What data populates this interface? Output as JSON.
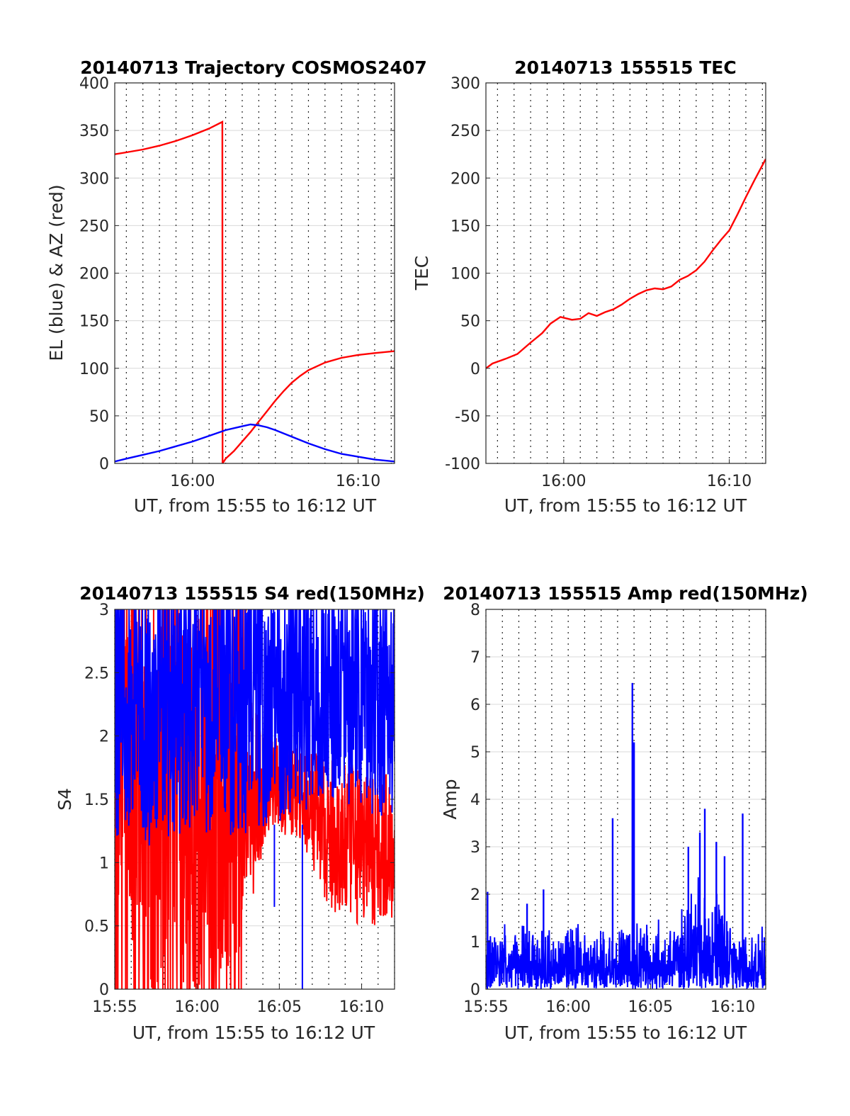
{
  "chart_data": [
    {
      "id": "traj",
      "type": "line",
      "title": "20140713 Trajectory COSMOS2407",
      "xlabel": "UT, from 15:55 to 16:12 UT",
      "ylabel": "EL (blue) & AZ (red)",
      "x_range_minutes": [
        955.3,
        972.2
      ],
      "x_ticks": [
        {
          "t": 960,
          "label": "16:00"
        },
        {
          "t": 970,
          "label": "16:10"
        }
      ],
      "ylim": [
        0,
        400
      ],
      "y_ticks": [
        0,
        50,
        100,
        150,
        200,
        250,
        300,
        350,
        400
      ],
      "grid": "on",
      "series": [
        {
          "color": "#ff0000",
          "x": [
            955.3,
            956,
            957,
            958,
            959,
            960,
            961,
            961.8,
            961.81,
            962,
            962.5,
            963,
            963.5,
            964,
            964.5,
            965,
            965.5,
            966,
            966.5,
            967,
            968,
            969,
            970,
            971,
            972.2
          ],
          "y": [
            325,
            327,
            330,
            334,
            339,
            345,
            352,
            359,
            0,
            5,
            13,
            23,
            33,
            44,
            55,
            66,
            76,
            85,
            92,
            98,
            106,
            111,
            114,
            116,
            118
          ]
        },
        {
          "color": "#0000ff",
          "x": [
            955.3,
            956,
            957,
            958,
            959,
            960,
            961,
            962,
            963,
            963.5,
            964,
            964.5,
            965,
            966,
            967,
            968,
            969,
            970,
            971,
            972.2
          ],
          "y": [
            2,
            5,
            9,
            13,
            18,
            23,
            29,
            35,
            39,
            41,
            40,
            38,
            35,
            28,
            21,
            15,
            10,
            7,
            4,
            2
          ]
        }
      ]
    },
    {
      "id": "tec",
      "type": "line",
      "title": "20140713 155515 TEC",
      "xlabel": "UT, from 15:55 to 16:12 UT",
      "ylabel": "TEC",
      "x_range_minutes": [
        955.3,
        972.2
      ],
      "x_ticks": [
        {
          "t": 960,
          "label": "16:00"
        },
        {
          "t": 970,
          "label": "16:10"
        }
      ],
      "ylim": [
        -100,
        300
      ],
      "y_ticks": [
        -100,
        -50,
        0,
        50,
        100,
        150,
        200,
        250,
        300
      ],
      "grid": "on",
      "series": [
        {
          "color": "#ff0000",
          "x": [
            955.3,
            955.7,
            956.5,
            957.2,
            958,
            958.7,
            959.2,
            959.8,
            960.5,
            961,
            961.5,
            962,
            962.5,
            963,
            963.5,
            964,
            964.5,
            965,
            965.5,
            966,
            966.5,
            967,
            967.5,
            968,
            968.5,
            969,
            969.5,
            970,
            970.5,
            971,
            971.5,
            972.2
          ],
          "y": [
            0,
            5,
            10,
            15,
            27,
            37,
            47,
            54,
            51,
            52,
            58,
            55,
            59,
            62,
            67,
            73,
            78,
            82,
            84,
            83,
            86,
            93,
            97,
            103,
            112,
            124,
            135,
            145,
            162,
            180,
            197,
            220
          ]
        }
      ]
    },
    {
      "id": "s4",
      "type": "line",
      "title": "20140713 155515 S4 red(150MHz)",
      "xlabel": "UT, from 15:55 to 16:12 UT",
      "ylabel": "S4",
      "x_range_minutes": [
        955,
        972
      ],
      "x_ticks": [
        {
          "t": 955,
          "label": "15:55"
        },
        {
          "t": 960,
          "label": "16:00"
        },
        {
          "t": 965,
          "label": "16:05"
        },
        {
          "t": 970,
          "label": "16:10"
        }
      ],
      "ylim": [
        0,
        3
      ],
      "y_ticks": [
        0,
        0.5,
        1,
        1.5,
        2,
        2.5,
        3
      ],
      "grid": "on",
      "noise_profile": [
        {
          "x": 955,
          "red_lo": 0.8,
          "red_hi": 3.0,
          "blue_lo": 1.2,
          "blue_hi": 2.8
        },
        {
          "x": 957,
          "red_lo": 0.0,
          "red_hi": 3.0,
          "blue_lo": 1.1,
          "blue_hi": 3.0
        },
        {
          "x": 960,
          "red_lo": 0.0,
          "red_hi": 3.0,
          "blue_lo": 1.2,
          "blue_hi": 3.0
        },
        {
          "x": 962.5,
          "red_lo": 0.2,
          "red_hi": 2.5,
          "blue_lo": 1.2,
          "blue_hi": 3.0
        },
        {
          "x": 964.5,
          "red_lo": 1.3,
          "red_hi": 2.0,
          "blue_lo": 1.3,
          "blue_hi": 3.0
        },
        {
          "x": 966.5,
          "red_lo": 1.1,
          "red_hi": 1.9,
          "blue_lo": 1.4,
          "blue_hi": 3.0
        },
        {
          "x": 968.5,
          "red_lo": 0.5,
          "red_hi": 1.8,
          "blue_lo": 1.5,
          "blue_hi": 3.0
        },
        {
          "x": 972,
          "red_lo": 0.5,
          "red_hi": 1.7,
          "blue_lo": 1.3,
          "blue_hi": 3.0
        }
      ],
      "series": [
        {
          "color": "#ff0000"
        },
        {
          "color": "#0000ff"
        }
      ]
    },
    {
      "id": "amp",
      "type": "line",
      "title": "20140713 155515 Amp red(150MHz)",
      "xlabel": "UT, from 15:55 to 16:12 UT",
      "ylabel": "Amp",
      "x_range_minutes": [
        955,
        972
      ],
      "x_ticks": [
        {
          "t": 955,
          "label": "15:55"
        },
        {
          "t": 960,
          "label": "16:00"
        },
        {
          "t": 965,
          "label": "16:05"
        },
        {
          "t": 970,
          "label": "16:10"
        }
      ],
      "ylim": [
        0,
        8
      ],
      "y_ticks": [
        0,
        1,
        2,
        3,
        4,
        5,
        6,
        7,
        8
      ],
      "grid": "on",
      "noise_profile": [
        {
          "x": 955,
          "hi": 1.5
        },
        {
          "x": 961,
          "hi": 1.4
        },
        {
          "x": 965,
          "hi": 1.6
        },
        {
          "x": 966.5,
          "hi": 1.5
        },
        {
          "x": 967,
          "hi": 2.5
        },
        {
          "x": 969.5,
          "hi": 2.3
        },
        {
          "x": 970,
          "hi": 1.3
        },
        {
          "x": 972,
          "hi": 1.4
        }
      ],
      "peaks": [
        {
          "x": 955.1,
          "y": 2.05
        },
        {
          "x": 957.5,
          "y": 1.8
        },
        {
          "x": 958.5,
          "y": 2.1
        },
        {
          "x": 962.7,
          "y": 3.6
        },
        {
          "x": 963.9,
          "y": 6.45
        },
        {
          "x": 964.0,
          "y": 5.2
        },
        {
          "x": 967.3,
          "y": 3.0
        },
        {
          "x": 968.0,
          "y": 3.3
        },
        {
          "x": 968.3,
          "y": 3.8
        },
        {
          "x": 969.0,
          "y": 3.1
        },
        {
          "x": 969.5,
          "y": 2.8
        },
        {
          "x": 970.6,
          "y": 3.7
        }
      ],
      "series": [
        {
          "color": "#0000ff"
        }
      ]
    }
  ]
}
